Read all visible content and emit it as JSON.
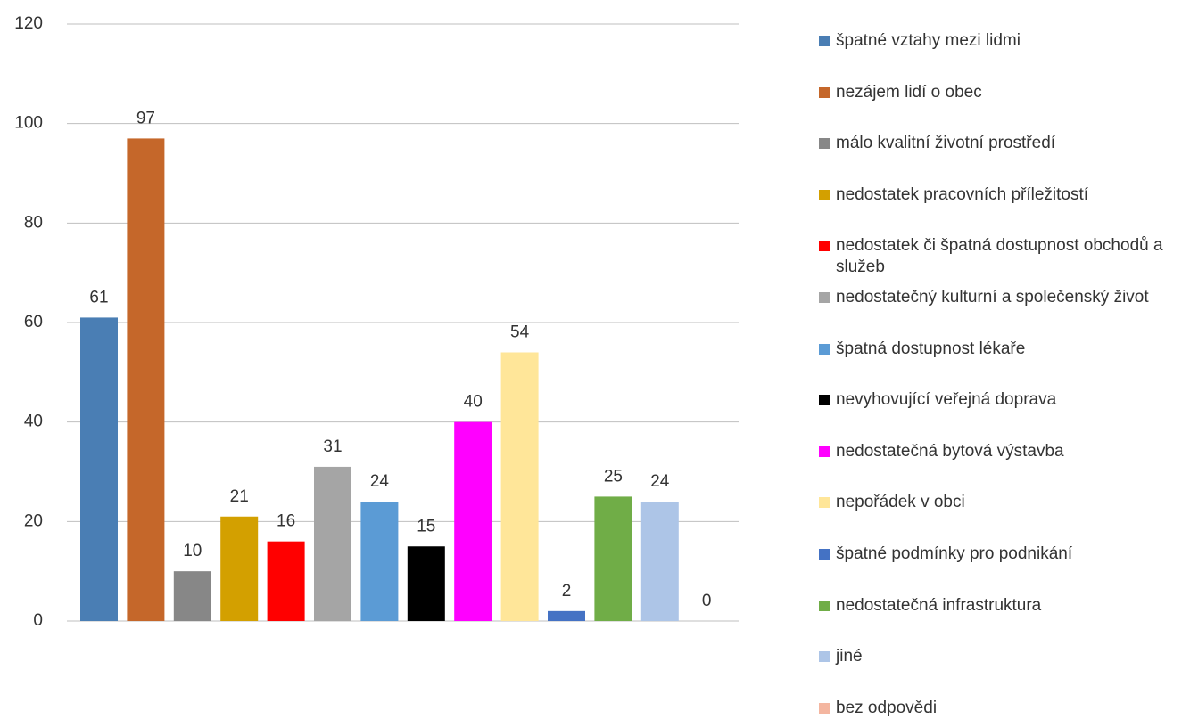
{
  "chart_data": {
    "type": "bar",
    "categories": [
      null
    ],
    "series": [
      {
        "name": "špatné vztahy mezi lidmi",
        "color": "#4a7eb4",
        "values": [
          61
        ]
      },
      {
        "name": "nezájem lidí o obec",
        "color": "#c5672a",
        "values": [
          97
        ]
      },
      {
        "name": "málo kvalitní životní prostředí",
        "color": "#878787",
        "values": [
          10
        ]
      },
      {
        "name": "nedostatek pracovních příležitostí",
        "color": "#d3a000",
        "values": [
          21
        ]
      },
      {
        "name": "nedostatek či špatná dostupnost obchodů a služeb",
        "color": "#ff0000",
        "values": [
          16
        ]
      },
      {
        "name": "nedostatečný kulturní a společenský život",
        "color": "#a5a5a5",
        "values": [
          31
        ]
      },
      {
        "name": "špatná dostupnost lékaře",
        "color": "#5b9bd5",
        "values": [
          24
        ]
      },
      {
        "name": "nevyhovující veřejná doprava",
        "color": "#000000",
        "values": [
          15
        ]
      },
      {
        "name": "nedostatečná bytová výstavba",
        "color": "#ff00ff",
        "values": [
          40
        ]
      },
      {
        "name": "nepořádek v obci",
        "color": "#ffe699",
        "values": [
          54
        ]
      },
      {
        "name": "špatné podmínky pro podnikání",
        "color": "#4472c4",
        "values": [
          2
        ]
      },
      {
        "name": "nedostatečná infrastruktura",
        "color": "#70ad47",
        "values": [
          25
        ]
      },
      {
        "name": "jiné",
        "color": "#adc5e7",
        "values": [
          24
        ]
      },
      {
        "name": "bez odpovědi",
        "color": "#f4b6a0",
        "values": [
          0
        ]
      }
    ],
    "ylim": [
      0,
      120
    ],
    "yticks": [
      0,
      20,
      40,
      60,
      80,
      100,
      120
    ],
    "grid": true,
    "legend": "right"
  }
}
